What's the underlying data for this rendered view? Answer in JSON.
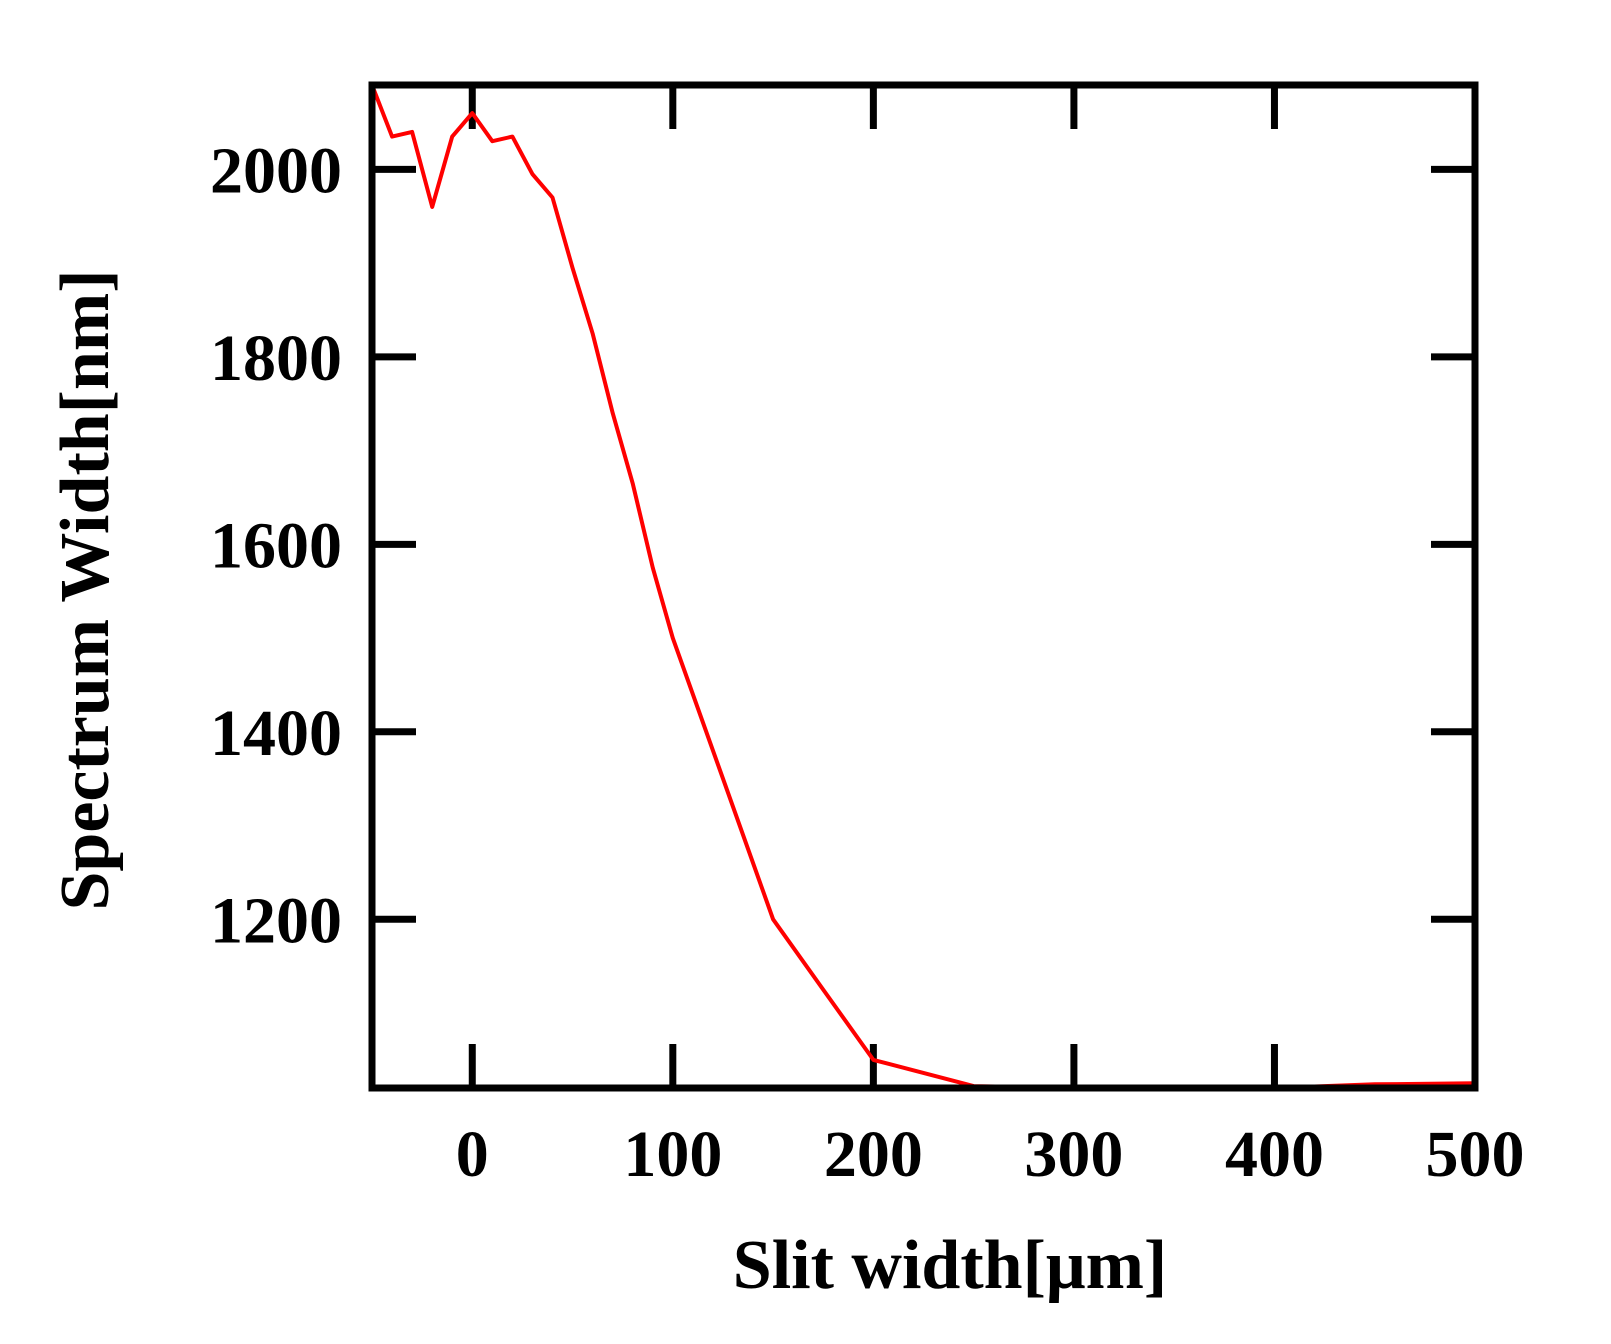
{
  "chart_data": {
    "type": "line",
    "title": "",
    "xlabel": "Slit width[μm]",
    "ylabel": "Spectrum Width[nm]",
    "xlim": [
      -50,
      500
    ],
    "ylim": [
      1020,
      2090
    ],
    "x_ticks": [
      0,
      100,
      200,
      300,
      400,
      500
    ],
    "y_ticks": [
      1200,
      1400,
      1600,
      1800,
      2000
    ],
    "x_tick_labels": [
      "0",
      "100",
      "200",
      "300",
      "400",
      "500"
    ],
    "y_tick_labels": [
      "1200",
      "1400",
      "1600",
      "1800",
      "2000"
    ],
    "grid": false,
    "series": [
      {
        "color": "#ff0000",
        "x": [
          -50,
          -40,
          -30,
          -20,
          -10,
          0,
          10,
          20,
          30,
          40,
          50,
          60,
          70,
          80,
          90,
          100,
          125,
          150,
          175,
          200,
          250,
          300,
          350,
          400,
          450,
          500
        ],
        "y": [
          2090,
          2035,
          2040,
          1960,
          2035,
          2060,
          2030,
          2035,
          1995,
          1970,
          1895,
          1825,
          1740,
          1665,
          1575,
          1500,
          1350,
          1200,
          1125,
          1050,
          1022,
          1020,
          1020,
          1020,
          1024,
          1025
        ]
      }
    ]
  }
}
